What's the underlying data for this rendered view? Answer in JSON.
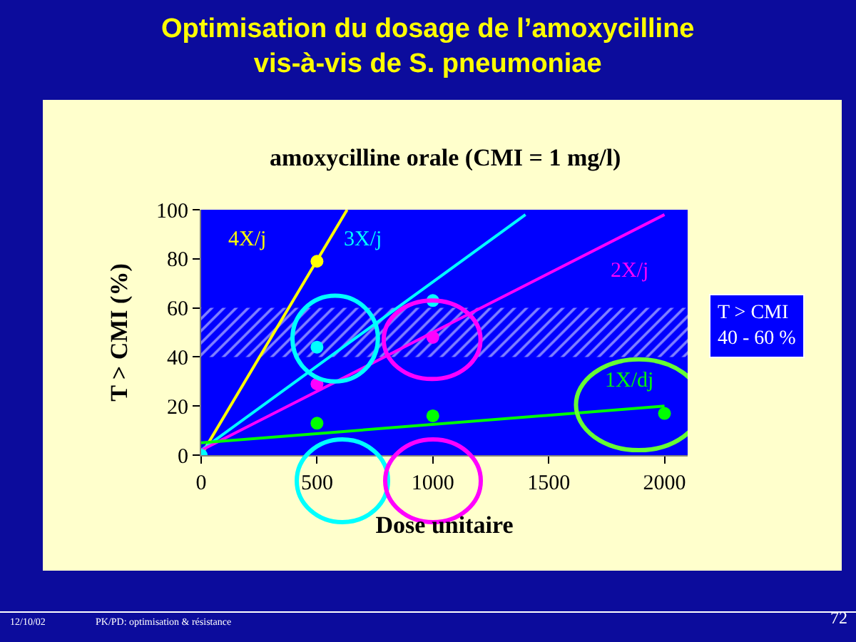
{
  "chart_data": {
    "type": "scatter",
    "title": "Optimisation du dosage de l’amoxycilline\nvis-à-vis de S. pneumoniae",
    "subtitle": "amoxycilline orale (CMI = 1 mg/l)",
    "xlabel": "Dose unitaire",
    "ylabel": "T > CMI (%)",
    "xlim": [
      0,
      2100
    ],
    "xticks": [
      0,
      500,
      1000,
      1500,
      2000
    ],
    "ylim": [
      0,
      100
    ],
    "yticks": [
      0,
      20,
      40,
      60,
      80,
      100
    ],
    "grid": false,
    "legend": false,
    "marker": "circle",
    "series": [
      {
        "color": "#ffff00",
        "x": [
          500
        ],
        "values": [
          79
        ]
      },
      {
        "color": "#00ffff",
        "x": [
          0,
          500,
          1000
        ],
        "values": [
          0,
          44,
          63
        ]
      },
      {
        "color": "#ff00ff",
        "x": [
          500,
          1000
        ],
        "values": [
          29,
          48
        ]
      },
      {
        "color": "#00ff00",
        "x": [
          500,
          1000,
          2000
        ],
        "values": [
          13,
          16,
          17
        ]
      },
      {
        "type": "line",
        "name": "4X/j",
        "color": "#ffff00",
        "x": [
          0,
          630
        ],
        "values": [
          0,
          100
        ],
        "marker": "none"
      },
      {
        "type": "line",
        "name": "3X/j",
        "color": "#00ffff",
        "x": [
          0,
          1400
        ],
        "values": [
          2,
          98
        ],
        "marker": "none"
      },
      {
        "type": "line",
        "name": "2X/j",
        "color": "#ff00ff",
        "x": [
          0,
          2000
        ],
        "values": [
          2,
          98
        ],
        "marker": "none"
      },
      {
        "type": "line",
        "name": "1X/dj",
        "color": "#00ff00",
        "x": [
          0,
          2000
        ],
        "values": [
          5,
          20
        ],
        "marker": "none"
      }
    ],
    "bands": [
      {
        "axis": "y",
        "from": 40,
        "to": 60,
        "label": "T > CMI\n40 - 60 %",
        "color": "#ffffff"
      }
    ],
    "annotations": [
      "12/10/02",
      "PK/PD: optimisation & résistance",
      "72"
    ]
  }
}
